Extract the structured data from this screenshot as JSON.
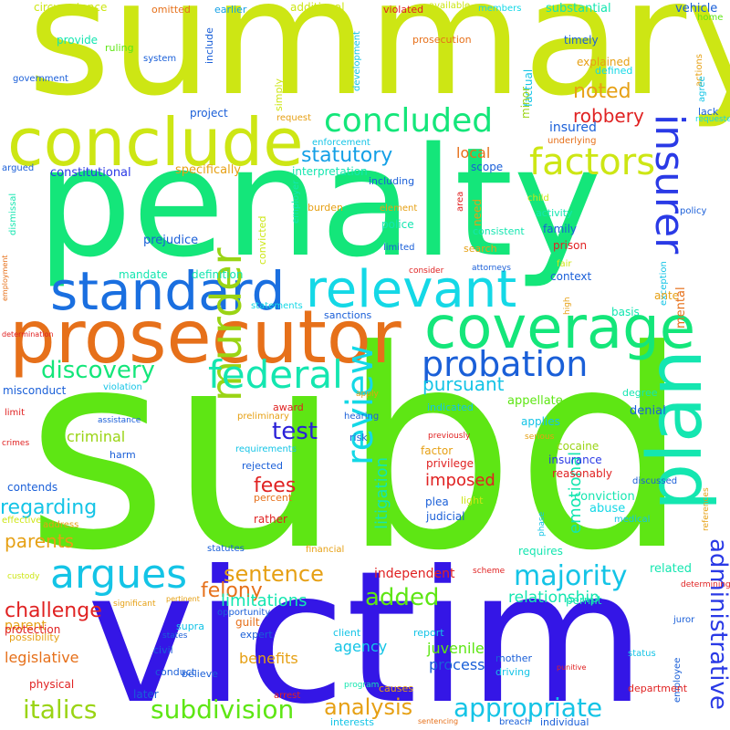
{
  "words": [
    {
      "text": "subd",
      "color": "#5ee614"
    },
    {
      "text": "victim",
      "color": "#3416e6"
    },
    {
      "text": "summary",
      "color": "#cde614"
    },
    {
      "text": "penalty",
      "color": "#14e67a"
    },
    {
      "text": "conclude",
      "color": "#cde614"
    },
    {
      "text": "prosecutor",
      "color": "#e6701a"
    },
    {
      "text": "coverage",
      "color": "#14e67a"
    },
    {
      "text": "standard",
      "color": "#1a6fe0"
    },
    {
      "text": "relevant",
      "color": "#14d8e6"
    },
    {
      "text": "insurer",
      "color": "#2a3ae6"
    },
    {
      "text": "concluded",
      "color": "#14e67a"
    },
    {
      "text": "factors",
      "color": "#cde614"
    },
    {
      "text": "murder",
      "color": "#9ad414"
    },
    {
      "text": "plan",
      "color": "#14e6b0"
    },
    {
      "text": "review",
      "color": "#14d8e6"
    },
    {
      "text": "argues",
      "color": "#14c4e6"
    },
    {
      "text": "federal",
      "color": "#14e6b0"
    },
    {
      "text": "administrative",
      "color": "#2a3ae6"
    },
    {
      "text": "probation",
      "color": "#1a5fd8"
    },
    {
      "text": "majority",
      "color": "#14c4e6"
    },
    {
      "text": "appropriate",
      "color": "#14c4e6"
    },
    {
      "text": "italics",
      "color": "#9ad414"
    },
    {
      "text": "subdivision",
      "color": "#5ee614"
    },
    {
      "text": "analysis",
      "color": "#e6a014"
    },
    {
      "text": "sentence",
      "color": "#e6a014"
    },
    {
      "text": "discovery",
      "color": "#14e67a"
    },
    {
      "text": "noted",
      "color": "#e6a014"
    },
    {
      "text": "robbery",
      "color": "#e02222"
    },
    {
      "text": "test",
      "color": "#2a20d8"
    },
    {
      "text": "added",
      "color": "#5ee614"
    },
    {
      "text": "fees",
      "color": "#e02222"
    },
    {
      "text": "felony",
      "color": "#e6701a"
    },
    {
      "text": "limitations",
      "color": "#14e6b0"
    },
    {
      "text": "challenge",
      "color": "#e02222"
    },
    {
      "text": "regarding",
      "color": "#14c4e6"
    },
    {
      "text": "parents",
      "color": "#e6a014"
    },
    {
      "text": "statutory",
      "color": "#14a0e6"
    },
    {
      "text": "pursuant",
      "color": "#14c4e6"
    },
    {
      "text": "emotional",
      "color": "#14e6b0"
    },
    {
      "text": "litigation",
      "color": "#14e6b0"
    },
    {
      "text": "imposed",
      "color": "#e02222"
    },
    {
      "text": "criminal",
      "color": "#9ad414"
    },
    {
      "text": "relationship",
      "color": "#14e6b0"
    },
    {
      "text": "independent",
      "color": "#e02222"
    },
    {
      "text": "juvenile",
      "color": "#5ee614"
    },
    {
      "text": "process",
      "color": "#1a5fd8"
    },
    {
      "text": "agency",
      "color": "#14c4e6"
    },
    {
      "text": "benefits",
      "color": "#e6a014"
    },
    {
      "text": "legislative",
      "color": "#e6701a"
    },
    {
      "text": "insured",
      "color": "#1a5fd8"
    },
    {
      "text": "local",
      "color": "#e6701a"
    },
    {
      "text": "summary",
      "color": "#cde614"
    }
  ],
  "small_words": [
    "circumstance",
    "omitted",
    "earlier",
    "additional",
    "violated",
    "available",
    "members",
    "substantial",
    "vehicle",
    "home",
    "provide",
    "ruling",
    "include",
    "development",
    "factual",
    "prosecution",
    "timely",
    "actions",
    "explained",
    "defined",
    "government",
    "system",
    "simply",
    "minor",
    "lack",
    "agree",
    "requested",
    "project",
    "request",
    "underlying",
    "enforcement",
    "argued",
    "constitutional",
    "specifically",
    "interpretation",
    "including",
    "scope",
    "need",
    "area",
    "child",
    "policy",
    "activity",
    "consistent",
    "family",
    "burden",
    "element",
    "dismissal",
    "employer",
    "police",
    "prison",
    "employment",
    "prejudice",
    "limited",
    "search",
    "consider",
    "attorneys",
    "exception",
    "fair",
    "mandate",
    "definition",
    "context",
    "ante",
    "mental",
    "determination",
    "statements",
    "sanctions",
    "high",
    "basis",
    "misconduct",
    "violation",
    "degree",
    "appellate",
    "denial",
    "indicated",
    "award",
    "apply",
    "limit",
    "assistance",
    "preliminary",
    "hearing",
    "previously",
    "risk",
    "serious",
    "applies",
    "crimes",
    "harm",
    "requirements",
    "privilege",
    "cocaine",
    "insurance",
    "discussed",
    "contends",
    "rejected",
    "factor",
    "reasonably",
    "plea",
    "effective",
    "percent",
    "light",
    "conviction",
    "abuse",
    "references",
    "address",
    "rather",
    "judicial",
    "medical",
    "phase",
    "statutes",
    "financial",
    "scheme",
    "determining",
    "custody",
    "requires",
    "significant",
    "pertinent",
    "opportunity",
    "parent",
    "related",
    "permit",
    "juror",
    "protection",
    "possibility",
    "supra",
    "guilt",
    "client",
    "report",
    "states",
    "expert",
    "civil",
    "status",
    "employee",
    "believe",
    "conduct",
    "program",
    "mother",
    "driving",
    "punitive",
    "physical",
    "later",
    "arrest",
    "causes",
    "department",
    "interests",
    "sentencing",
    "breach",
    "individual",
    "convicted"
  ]
}
